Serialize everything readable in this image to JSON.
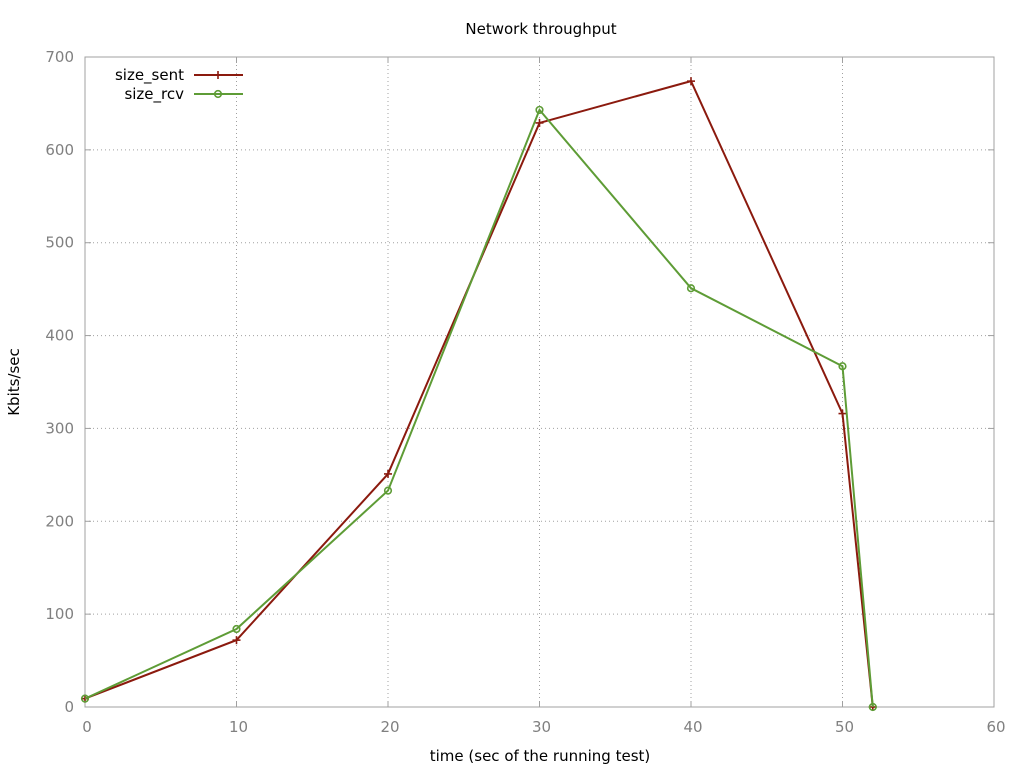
{
  "chart_data": {
    "type": "line",
    "title": "Network throughput",
    "xlabel": "time (sec of the running test)",
    "ylabel": "Kbits/sec",
    "xlim": [
      0,
      60
    ],
    "ylim": [
      0,
      700
    ],
    "x_ticks": [
      0,
      10,
      20,
      30,
      40,
      50,
      60
    ],
    "y_ticks": [
      0,
      100,
      200,
      300,
      400,
      500,
      600,
      700
    ],
    "x_tick_labels": [
      "0",
      "10",
      "20",
      "30",
      "40",
      "50",
      "60"
    ],
    "y_tick_labels": [
      "0",
      "100",
      "200",
      "300",
      "400",
      "500",
      "600",
      "700"
    ],
    "grid": true,
    "legend_position": "top-left",
    "series": [
      {
        "name": "size_sent",
        "color": "#8b1a0e",
        "marker": "plus",
        "x": [
          0,
          10,
          20,
          30,
          40,
          50,
          52
        ],
        "values": [
          9,
          72,
          251,
          629,
          674,
          316,
          0
        ]
      },
      {
        "name": "size_rcv",
        "color": "#5e9c36",
        "marker": "circle",
        "x": [
          0,
          10,
          20,
          30,
          40,
          50,
          52
        ],
        "values": [
          9,
          84,
          233,
          643,
          451,
          367,
          0
        ]
      }
    ]
  }
}
